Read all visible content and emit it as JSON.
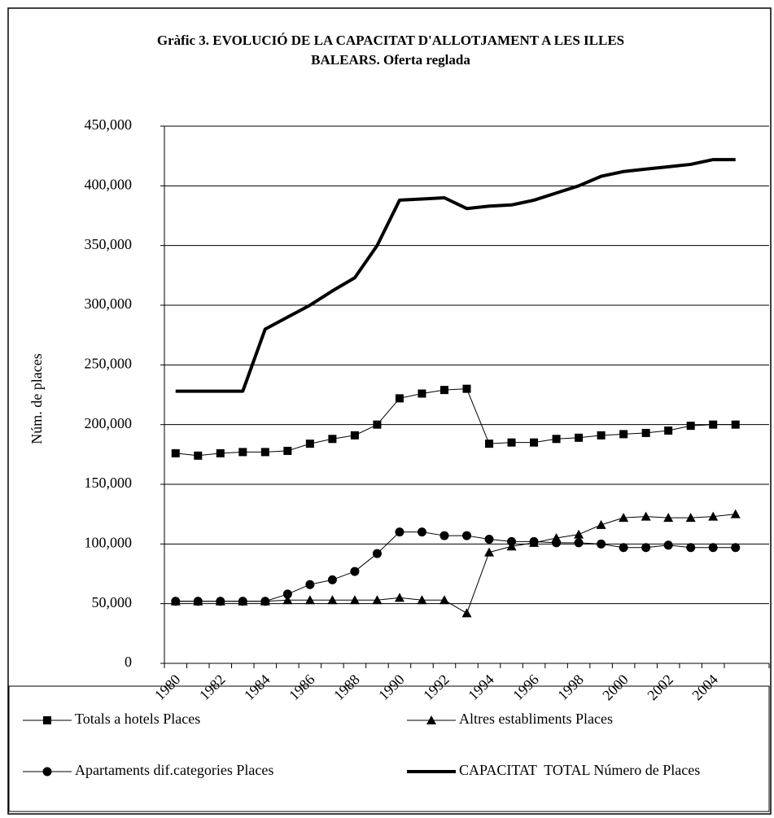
{
  "chart_data": {
    "type": "line",
    "title": "Gràfic 3. EVOLUCIÓ DE LA CAPACITAT D'ALLOTJAMENT A LES ILLES BALEARS. Oferta reglada",
    "y_label": "Núm. de places",
    "categories": [
      "1980",
      null,
      "1982",
      null,
      "1984",
      null,
      "1986",
      null,
      "1988",
      null,
      "1990",
      null,
      "1992",
      null,
      "1994",
      null,
      "1996",
      null,
      "1998",
      null,
      "2000",
      null,
      "2002",
      null,
      "2004",
      null
    ],
    "ylim": [
      0,
      450000
    ],
    "yticks": [
      0,
      {
        "value": 50000,
        "label": "50,000"
      },
      {
        "value": 100000,
        "label": "100,000"
      },
      {
        "value": 150000,
        "label": "150,000"
      },
      {
        "value": 200000,
        "label": "200,000"
      },
      {
        "value": 250000,
        "label": "250,000"
      },
      {
        "value": 300000,
        "label": "300,000"
      },
      {
        "value": 350000,
        "label": "350,000"
      },
      {
        "value": 400000,
        "label": "400,000"
      },
      {
        "value": 450000,
        "label": "450,000"
      }
    ],
    "grid": true,
    "legend": "bottom",
    "series": [
      {
        "name": "Totals a hotels Places",
        "color": "#000000",
        "marker": "square",
        "linewidth": 1,
        "values": [
          176000,
          174000,
          176000,
          177000,
          177000,
          178000,
          184000,
          188000,
          191000,
          200000,
          222000,
          226000,
          229000,
          230000,
          184000,
          185000,
          185000,
          188000,
          189000,
          191000,
          192000,
          193000,
          195000,
          199000,
          200000,
          200000
        ]
      },
      {
        "name": "Altres establiments Places",
        "color": "#000000",
        "marker": "triangle",
        "linewidth": 1,
        "values": [
          52000,
          52000,
          52000,
          52000,
          52000,
          53000,
          53000,
          53000,
          53000,
          53000,
          55000,
          53000,
          53000,
          42000,
          93000,
          98000,
          101000,
          105000,
          108000,
          116000,
          122000,
          123000,
          122000,
          122000,
          123000,
          125000
        ]
      },
      {
        "name": "Apartaments dif.categories Places",
        "color": "#000000",
        "marker": "circle",
        "linewidth": 1,
        "values": [
          52000,
          52000,
          52000,
          52000,
          52000,
          58000,
          66000,
          70000,
          77000,
          92000,
          110000,
          110000,
          107000,
          107000,
          104000,
          102000,
          102000,
          101000,
          101000,
          100000,
          97000,
          97000,
          99000,
          97000,
          97000,
          97000
        ]
      },
      {
        "name": "CAPACITAT  TOTAL Número de Places",
        "color": "#000000",
        "marker": "none",
        "linewidth": 4,
        "values": [
          228000,
          228000,
          228000,
          228000,
          280000,
          290000,
          300000,
          312000,
          323000,
          350000,
          388000,
          389000,
          390000,
          381000,
          383000,
          384000,
          388000,
          394000,
          400000,
          408000,
          412000,
          414000,
          416000,
          418000,
          422000,
          422000
        ]
      }
    ]
  }
}
